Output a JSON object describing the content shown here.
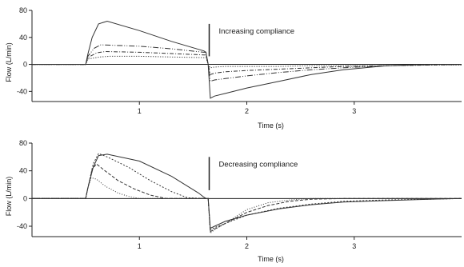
{
  "chart_data": [
    {
      "type": "line",
      "annotation": "Increasing compliance",
      "annotation_x": 1.65,
      "annotation_bar_y": [
        60,
        12
      ],
      "xlabel": "Time (s)",
      "ylabel": "Flow (L/min)",
      "xlim": [
        0,
        4.0
      ],
      "ylim": [
        -55,
        80
      ],
      "xticks": [
        1,
        2,
        3
      ],
      "yticks": [
        80,
        40,
        0,
        -40
      ],
      "grid": false,
      "legend": false,
      "series": [
        {
          "dash": "1.2,1.8",
          "x": [
            0,
            0.5,
            0.52,
            0.63,
            0.72,
            1.0,
            1.3,
            1.6,
            1.62,
            1.64,
            1.66,
            1.7,
            1.8,
            2.0,
            2.3,
            2.6,
            2.9,
            3.3,
            3.7,
            4.0
          ],
          "y": [
            0,
            0,
            8,
            11,
            12,
            12,
            11,
            10,
            10,
            0,
            -5,
            -4,
            -3,
            -3,
            -3,
            -2,
            -2,
            -2,
            -1,
            -1
          ]
        },
        {
          "dash": "5,2,1,2",
          "x": [
            0,
            0.5,
            0.52,
            0.6,
            0.68,
            1.0,
            1.3,
            1.6,
            1.62,
            1.64,
            1.66,
            1.7,
            1.8,
            2.0,
            2.3,
            2.6,
            2.9,
            3.3,
            3.7,
            4.0
          ],
          "y": [
            0,
            0,
            10,
            17,
            19,
            18,
            16,
            14,
            14,
            0,
            -15,
            -13,
            -11,
            -9,
            -7,
            -5,
            -3,
            -2,
            -1,
            0
          ]
        },
        {
          "dash": "7,2,1,2,1,2",
          "x": [
            0,
            0.5,
            0.52,
            0.58,
            0.64,
            1.0,
            1.3,
            1.6,
            1.62,
            1.64,
            1.66,
            1.7,
            1.8,
            2.0,
            2.3,
            2.6,
            2.9,
            3.3,
            3.7,
            4.0
          ],
          "y": [
            0,
            0,
            12,
            24,
            29,
            27,
            23,
            18,
            18,
            0,
            -25,
            -23,
            -21,
            -17,
            -12,
            -8,
            -5,
            -2,
            0,
            0
          ]
        },
        {
          "dash": "",
          "x": [
            0,
            0.5,
            0.52,
            0.56,
            0.62,
            0.7,
            1.0,
            1.3,
            1.6,
            1.62,
            1.64,
            1.66,
            1.7,
            1.8,
            2.0,
            2.3,
            2.6,
            2.9,
            3.3,
            3.7,
            4.0
          ],
          "y": [
            0,
            0,
            15,
            40,
            60,
            64,
            50,
            34,
            20,
            18,
            0,
            -50,
            -47,
            -43,
            -35,
            -25,
            -15,
            -8,
            -2,
            0,
            0
          ]
        }
      ]
    },
    {
      "type": "line",
      "annotation": "Decreasing compliance",
      "annotation_x": 1.65,
      "annotation_bar_y": [
        60,
        12
      ],
      "xlabel": "Time (s)",
      "ylabel": "Flow (L/min)",
      "xlim": [
        0,
        4.0
      ],
      "ylim": [
        -55,
        80
      ],
      "xticks": [
        1,
        2,
        3
      ],
      "yticks": [
        80,
        40,
        0,
        -40
      ],
      "grid": false,
      "legend": false,
      "series": [
        {
          "dash": "",
          "x": [
            0,
            0.5,
            0.52,
            0.57,
            0.62,
            0.7,
            1.0,
            1.3,
            1.55,
            1.6,
            1.62,
            1.64,
            1.66,
            1.7,
            1.8,
            2.0,
            2.3,
            2.6,
            2.9,
            3.3,
            3.7,
            4.0
          ],
          "y": [
            0,
            0,
            15,
            45,
            62,
            64,
            54,
            32,
            8,
            2,
            0,
            0,
            -43,
            -40,
            -33,
            -24,
            -15,
            -9,
            -5,
            -3,
            -1,
            0
          ]
        },
        {
          "dash": "2,2",
          "x": [
            0,
            0.5,
            0.52,
            0.57,
            0.62,
            0.7,
            0.9,
            1.1,
            1.3,
            1.45,
            1.62,
            1.64,
            1.66,
            1.7,
            1.8,
            2.0,
            2.3,
            2.6,
            2.9,
            3.3,
            3.7,
            4.0
          ],
          "y": [
            0,
            0,
            15,
            50,
            65,
            60,
            45,
            26,
            10,
            1,
            0,
            0,
            -46,
            -42,
            -36,
            -24,
            -14,
            -8,
            -4,
            -2,
            -1,
            0
          ]
        },
        {
          "dash": "4,2",
          "x": [
            0,
            0.5,
            0.52,
            0.56,
            0.6,
            0.68,
            0.8,
            0.95,
            1.1,
            1.25,
            1.62,
            1.64,
            1.66,
            1.7,
            1.8,
            2.0,
            2.2,
            2.4,
            2.6,
            2.9,
            3.3,
            3.7,
            4.0
          ],
          "y": [
            0,
            0,
            15,
            42,
            50,
            40,
            26,
            14,
            5,
            0,
            0,
            0,
            -48,
            -44,
            -36,
            -20,
            -10,
            -4,
            -1,
            0,
            0,
            0,
            0
          ]
        },
        {
          "dash": "1,2",
          "x": [
            0,
            0.5,
            0.52,
            0.55,
            0.6,
            0.68,
            0.8,
            0.9,
            1.0,
            1.62,
            1.64,
            1.66,
            1.7,
            1.8,
            2.0,
            2.2,
            2.4,
            2.6,
            3.0,
            3.5,
            4.0
          ],
          "y": [
            0,
            0,
            15,
            30,
            28,
            18,
            8,
            3,
            0,
            0,
            0,
            -50,
            -45,
            -36,
            -16,
            -6,
            -2,
            0,
            0,
            0,
            0
          ]
        }
      ]
    }
  ]
}
